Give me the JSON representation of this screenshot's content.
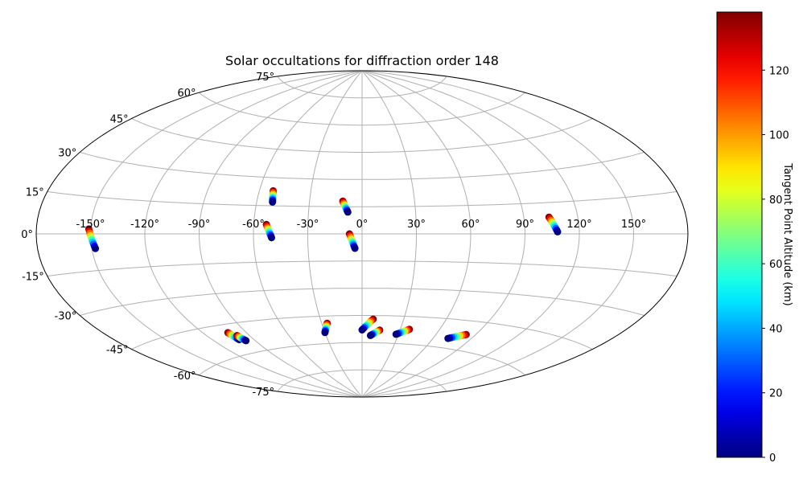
{
  "chart_data": {
    "type": "scatter",
    "projection": "aitoff",
    "title": "Solar occultations for diffraction order 148",
    "grid": true,
    "x_ticks": [
      "-150°",
      "-120°",
      "-90°",
      "-60°",
      "-30°",
      "0°",
      "30°",
      "60°",
      "90°",
      "120°",
      "150°"
    ],
    "x_tick_values": [
      -150,
      -120,
      -90,
      -60,
      -30,
      0,
      30,
      60,
      90,
      120,
      150
    ],
    "y_ticks": [
      "-75°",
      "-60°",
      "-45°",
      "-30°",
      "-15°",
      "0°",
      "15°",
      "30°",
      "45°",
      "60°",
      "75°"
    ],
    "y_tick_values": [
      -75,
      -60,
      -45,
      -30,
      -15,
      0,
      15,
      30,
      45,
      60,
      75
    ],
    "colorbar": {
      "label": "Tangent Point Altitude (km)",
      "colormap": "jet",
      "min": 0,
      "max": 138,
      "ticks": [
        "0",
        "20",
        "40",
        "60",
        "80",
        "100",
        "120"
      ],
      "tick_values": [
        0,
        20,
        40,
        60,
        80,
        100,
        120
      ]
    },
    "tracks": [
      {
        "start": [
          -151,
          2
        ],
        "end": [
          -148,
          -6
        ],
        "alt_top": 138,
        "alt_bottom": 0
      },
      {
        "start": [
          -52,
          23
        ],
        "end": [
          -51,
          17
        ],
        "alt_top": 138,
        "alt_bottom": 0
      },
      {
        "start": [
          -53,
          5
        ],
        "end": [
          -50,
          -2
        ],
        "alt_top": 138,
        "alt_bottom": 0
      },
      {
        "start": [
          -11,
          18
        ],
        "end": [
          -8,
          12
        ],
        "alt_top": 138,
        "alt_bottom": 0
      },
      {
        "start": [
          -7,
          0
        ],
        "end": [
          -4,
          -8
        ],
        "alt_top": 138,
        "alt_bottom": 0
      },
      {
        "start": [
          104,
          8
        ],
        "end": [
          108,
          1
        ],
        "alt_top": 138,
        "alt_bottom": 0
      },
      {
        "start": [
          -103,
          -49
        ],
        "end": [
          -101,
          -53
        ],
        "alt_top": 138,
        "alt_bottom": 0
      },
      {
        "start": [
          -99,
          -51
        ],
        "end": [
          -97,
          -54
        ],
        "alt_top": 138,
        "alt_bottom": 0
      },
      {
        "start": [
          -26,
          -49
        ],
        "end": [
          -30,
          -54
        ],
        "alt_top": 138,
        "alt_bottom": 0
      },
      {
        "start": [
          8,
          -47
        ],
        "end": [
          0,
          -53
        ],
        "alt_top": 138,
        "alt_bottom": 0
      },
      {
        "start": [
          14,
          -53
        ],
        "end": [
          7,
          -56
        ],
        "alt_top": 138,
        "alt_bottom": 0
      },
      {
        "start": [
          37,
          -52
        ],
        "end": [
          28,
          -55
        ],
        "alt_top": 138,
        "alt_bottom": 0
      },
      {
        "start": [
          83,
          -52
        ],
        "end": [
          72,
          -55
        ],
        "alt_top": 138,
        "alt_bottom": 0
      }
    ]
  }
}
